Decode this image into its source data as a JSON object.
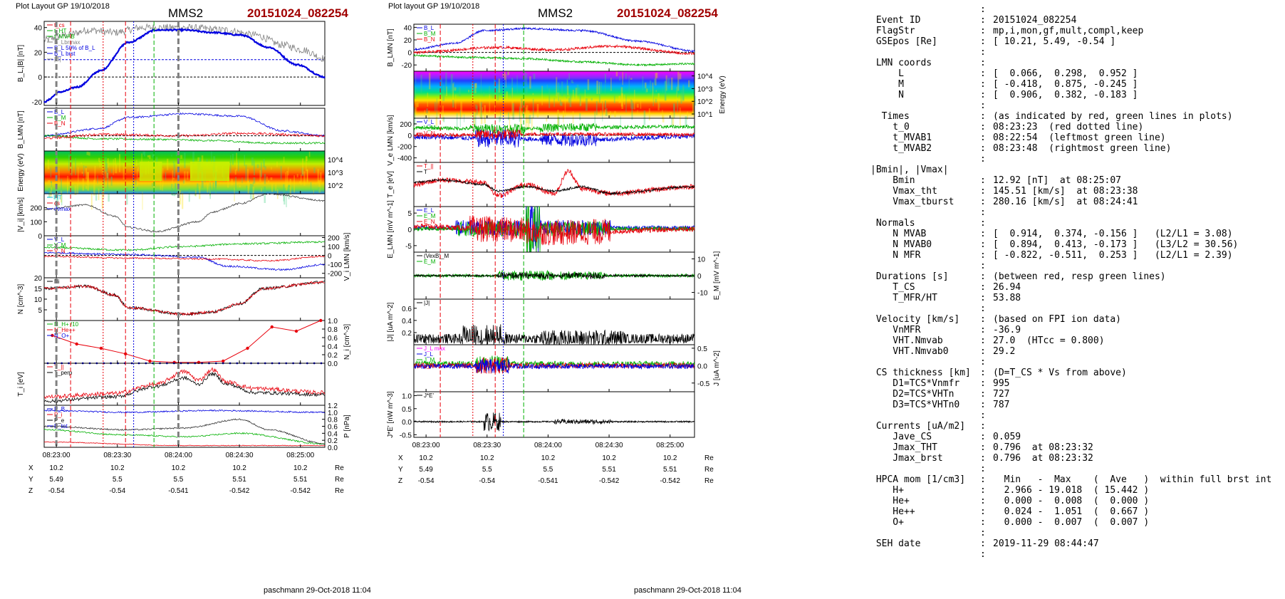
{
  "left_panel": {
    "header": "Plot Layout GP 19/10/2018",
    "title": "MMS2",
    "event": "20151024_082254",
    "footer": "paschmann 29-Oct-2018 11:04",
    "time_ticks": [
      "08:23:00",
      "08:23:30",
      "08:24:00",
      "08:24:30",
      "08:25:00"
    ],
    "position_rows": [
      {
        "label": "X",
        "values": [
          "10.2",
          "10.2",
          "10.2",
          "10.2",
          "10.2"
        ],
        "unit": "Re"
      },
      {
        "label": "Y",
        "values": [
          "5.49",
          "5.5",
          "5.5",
          "5.51",
          "5.51"
        ],
        "unit": "Re"
      },
      {
        "label": "Z",
        "values": [
          "-0.54",
          "-0.54",
          "-0.541",
          "-0.542",
          "-0.542"
        ],
        "unit": "Re"
      }
    ]
  },
  "right_panel": {
    "header": "Plot layout GP 19/10/2018",
    "title": "MMS2",
    "event": "20151024_082254",
    "footer": "paschmann 29-Oct-2018 11:04",
    "time_ticks": [
      "08:23:00",
      "08:23:30",
      "08:24:00",
      "08:24:30",
      "08:25:00"
    ],
    "position_rows": [
      {
        "label": "X",
        "values": [
          "10.2",
          "10.2",
          "10.2",
          "10.2",
          "10.2"
        ],
        "unit": "Re"
      },
      {
        "label": "Y",
        "values": [
          "5.49",
          "5.5",
          "5.5",
          "5.51",
          "5.51"
        ],
        "unit": "Re"
      },
      {
        "label": "Z",
        "values": [
          "-0.54",
          "-0.54",
          "-0.541",
          "-0.542",
          "-0.542"
        ],
        "unit": "Re"
      }
    ]
  },
  "colors": {
    "red": "#e8000b",
    "green": "#00b000",
    "blue": "#0000e0",
    "gray": "#808080",
    "title_red": "#a00000",
    "cyan": "#00c0e0",
    "magenta": "#ff00ff"
  },
  "info_lines": [
    {
      "k": "",
      "c": ":",
      "v": ""
    },
    {
      "k": " Event ID",
      "c": ":",
      "v": "20151024_082254"
    },
    {
      "k": " FlagStr",
      "c": ":",
      "v": "mp,i,mon,gf,mult,compl,keep"
    },
    {
      "k": " GSEpos [Re]",
      "c": ":",
      "v": "[ 10.21, 5.49, -0.54 ]"
    },
    {
      "k": "",
      "c": ":",
      "v": ""
    },
    {
      "k": " LMN coords",
      "c": ":",
      "v": ""
    },
    {
      "k": "     L",
      "c": ":",
      "v": "[  0.066,  0.298,  0.952 ]"
    },
    {
      "k": "     M",
      "c": ":",
      "v": "[ -0.418,  0.875, -0.245 ]"
    },
    {
      "k": "     N",
      "c": ":",
      "v": "[  0.906,  0.382, -0.183 ]"
    },
    {
      "k": "",
      "c": ":",
      "v": ""
    },
    {
      "k": "  Times",
      "c": ":",
      "v": "(as indicated by red, green lines in plots)"
    },
    {
      "k": "    t_0",
      "c": ":",
      "v": "08:23:23  (red dotted line)"
    },
    {
      "k": "    t_MVAB1",
      "c": ":",
      "v": "08:22:54  (leftmost green line)"
    },
    {
      "k": "    t_MVAB2",
      "c": ":",
      "v": "08:23:48  (rightmost green line)"
    },
    {
      "k": "",
      "c": ":",
      "v": ""
    },
    {
      "k": "|Bmin|, |Vmax|",
      "c": "",
      "v": ""
    },
    {
      "k": "    Bmin",
      "c": ":",
      "v": "12.92 [nT]  at 08:25:07"
    },
    {
      "k": "    Vmax_tht",
      "c": ":",
      "v": "145.51 [km/s]  at 08:23:38"
    },
    {
      "k": "    Vmax_tburst",
      "c": ":",
      "v": "280.16 [km/s]  at 08:24:41"
    },
    {
      "k": "",
      "c": ":",
      "v": ""
    },
    {
      "k": " Normals",
      "c": ":",
      "v": ""
    },
    {
      "k": "    N MVAB",
      "c": ":",
      "v": "[  0.914,  0.374, -0.156 ]   (L2/L1 = 3.08)"
    },
    {
      "k": "    N MVAB0",
      "c": ":",
      "v": "[  0.894,  0.413, -0.173 ]   (L3/L2 = 30.56)"
    },
    {
      "k": "    N MFR",
      "c": ":",
      "v": "[ -0.822, -0.511,  0.253 ]   (L2/L1 = 2.39)"
    },
    {
      "k": "",
      "c": ":",
      "v": ""
    },
    {
      "k": " Durations [s]",
      "c": ":",
      "v": "(between red, resp green lines)"
    },
    {
      "k": "    T_CS",
      "c": ":",
      "v": "26.94"
    },
    {
      "k": "    T_MFR/HT",
      "c": ":",
      "v": "53.88"
    },
    {
      "k": "",
      "c": ":",
      "v": ""
    },
    {
      "k": " Velocity [km/s]",
      "c": ":",
      "v": "(based on FPI ion data)"
    },
    {
      "k": "    VnMFR",
      "c": ":",
      "v": "-36.9"
    },
    {
      "k": "    VHT.Nmvab",
      "c": ":",
      "v": "27.0  (HTcc = 0.800)"
    },
    {
      "k": "    VHT.Nmvab0",
      "c": ":",
      "v": "29.2"
    },
    {
      "k": "",
      "c": ":",
      "v": ""
    },
    {
      "k": " CS thickness [km]",
      "c": ":",
      "v": "(D=T_CS * Vs from above)"
    },
    {
      "k": "    D1=TCS*Vnmfr",
      "c": ":",
      "v": "995"
    },
    {
      "k": "    D2=TCS*VHTn",
      "c": ":",
      "v": "727"
    },
    {
      "k": "    D3=TCS*VHTn0",
      "c": ":",
      "v": "787"
    },
    {
      "k": "",
      "c": ":",
      "v": ""
    },
    {
      "k": " Currents [uA/m2]",
      "c": ":",
      "v": ""
    },
    {
      "k": "    Jave_CS",
      "c": ":",
      "v": "0.059"
    },
    {
      "k": "    Jmax_THT",
      "c": ":",
      "v": "0.796  at 08:23:32"
    },
    {
      "k": "    Jmax_brst",
      "c": ":",
      "v": "0.796  at 08:23:32"
    },
    {
      "k": "",
      "c": ":",
      "v": ""
    },
    {
      "k": " HPCA mom [1/cm3]",
      "c": ":",
      "v": "  Min   -  Max    (  Ave   )  within full brst int"
    },
    {
      "k": "    H+",
      "c": ":",
      "v": "  2.966 - 19.018  ( 15.442 )"
    },
    {
      "k": "    He+",
      "c": ":",
      "v": "  0.000 -  0.008  (  0.000 )"
    },
    {
      "k": "    He++",
      "c": ":",
      "v": "  0.024 -  1.051  (  0.667 )"
    },
    {
      "k": "    O+",
      "c": ":",
      "v": "  0.000 -  0.007  (  0.007 )"
    },
    {
      "k": "",
      "c": ":",
      "v": ""
    },
    {
      "k": " SEH date",
      "c": ":",
      "v": "2019-11-29 08:44:47"
    },
    {
      "k": "",
      "c": ":",
      "v": ""
    }
  ],
  "chart_data": [
    {
      "type": "line",
      "panel": "left",
      "title": "MMS2",
      "xlim": [
        "08:22:54",
        "08:25:12"
      ],
      "xticks": [
        "08:23:00",
        "08:23:30",
        "08:24:00",
        "08:24:30",
        "08:25:00"
      ],
      "event_lines": {
        "red_dashed": [
          "08:23:07",
          "08:23:34"
        ],
        "red_dotted": "08:23:23",
        "blue_dotted": "08:23:38",
        "green_dashed": "08:23:48",
        "gray_dashed": [
          "08:23:00",
          "08:24:00"
        ]
      },
      "panels": [
        {
          "name": "bl",
          "ylabel": "B_L,|B| [nT]",
          "ylim": [
            -23,
            45
          ],
          "yticks": [
            "40",
            "20",
            "0",
            "-20"
          ],
          "zero_line": true,
          "ref_line": 14,
          "legend": [
            {
              "text": "t_cs",
              "color": "#e8000b"
            },
            {
              "text": "t_HT",
              "color": "#00b000"
            },
            {
              "text": "t_MVAB",
              "color": "#00b000"
            },
            {
              "text": "B_Lbrmax",
              "color": "#808080"
            },
            {
              "text": "B_L 50% of B_L",
              "color": "#0000e0"
            },
            {
              "text": "B_L brst",
              "color": "#0000e0"
            },
            {
              "text": "|B|",
              "color": "#808080"
            }
          ]
        },
        {
          "name": "blmn",
          "ylabel": "B_LMN [nT]",
          "ylim": [
            -25,
            45
          ],
          "zero_line": true,
          "legend": [
            {
              "text": "B_L",
              "color": "#0000e0"
            },
            {
              "text": "B_M",
              "color": "#00b000"
            },
            {
              "text": "B_N",
              "color": "#e8000b"
            }
          ]
        },
        {
          "name": "ispec",
          "type": "heatmap",
          "ylabel": "Energy (eV)",
          "yticks": [
            "10^4",
            "10^3",
            "10^2"
          ]
        },
        {
          "name": "vi",
          "ylabel": "|V_i| [km/s]",
          "ylim": [
            0,
            300
          ],
          "yticks": [
            "200",
            "100",
            "0"
          ],
          "legend": [
            {
              "text": "HT",
              "color": "#00c0e0"
            },
            {
              "text": "cs",
              "color": "#e8000b"
            },
            {
              "text": "dvmax",
              "color": "#0000e0"
            }
          ]
        },
        {
          "name": "vilmn",
          "ylabel": "V_i LMN [km/s]",
          "ylim": [
            -250,
            220
          ],
          "yticks_right": [
            "200",
            "100",
            "0",
            "-100",
            "-200"
          ],
          "zero_line": true,
          "legend": [
            {
              "text": "V_L",
              "color": "#0000e0"
            },
            {
              "text": "V_M",
              "color": "#00b000"
            },
            {
              "text": "V_N",
              "color": "#e8000b"
            }
          ]
        },
        {
          "name": "n",
          "ylabel": "N [cm^-3]",
          "ylim": [
            0,
            20
          ],
          "yticks": [
            "20",
            "15",
            "10",
            "5"
          ],
          "legend": [
            {
              "text": "Ni",
              "color": "#000000"
            }
          ]
        },
        {
          "name": "hpca",
          "ylabel": "N_i [cm^-3]",
          "ylim": [
            0,
            1.0
          ],
          "yticks_right": [
            "1.0",
            "0.8",
            "0.6",
            "0.4",
            "0.2",
            "0.0"
          ],
          "legend": [
            {
              "text": "N_H+ /10",
              "color": "#00b000"
            },
            {
              "text": "N_He++",
              "color": "#e8000b"
            },
            {
              "text": "N_O+",
              "color": "#0000e0"
            }
          ],
          "x": [
            "08:22:58",
            "08:23:10",
            "08:23:22",
            "08:23:34",
            "08:23:46",
            "08:23:58",
            "08:24:10",
            "08:24:22",
            "08:24:34",
            "08:24:46",
            "08:24:58",
            "08:25:10"
          ],
          "series": [
            {
              "name": "N_He++",
              "values": [
                0.65,
                0.45,
                0.35,
                0.22,
                0.05,
                0.02,
                0.02,
                0.05,
                0.35,
                0.85,
                0.75,
                1.0
              ]
            }
          ]
        },
        {
          "name": "ti",
          "ylabel": "T_i [eV]",
          "legend": [
            {
              "text": "T_||",
              "color": "#e8000b"
            },
            {
              "text": "T_perp",
              "color": "#000000"
            }
          ]
        },
        {
          "name": "p",
          "ylabel": "P [nPa]",
          "ylim": [
            0,
            1.2
          ],
          "yticks_right": [
            "1.2",
            "1.0",
            "0.8",
            "0.6",
            "0.4",
            "0.2",
            "0.0"
          ],
          "legend": [
            {
              "text": "P_B",
              "color": "#0000e0"
            },
            {
              "text": "P_i",
              "color": "#e8000b"
            },
            {
              "text": "P_e",
              "color": "#000000"
            },
            {
              "text": "P_tot",
              "color": "#0000e0"
            }
          ]
        }
      ]
    },
    {
      "type": "line",
      "panel": "right",
      "title": "MMS2",
      "xlim": [
        "08:22:54",
        "08:25:12"
      ],
      "xticks": [
        "08:23:00",
        "08:23:30",
        "08:24:00",
        "08:24:30",
        "08:25:00"
      ],
      "panels": [
        {
          "name": "blmn",
          "ylabel": "B_LMN [nT]",
          "ylim": [
            -30,
            45
          ],
          "yticks": [
            "40",
            "20",
            "0",
            "-20"
          ],
          "zero_line": true,
          "legend": [
            {
              "text": "B_L",
              "color": "#0000e0"
            },
            {
              "text": "B_M",
              "color": "#00b000"
            },
            {
              "text": "B_N",
              "color": "#e8000b"
            }
          ]
        },
        {
          "name": "espec",
          "type": "heatmap",
          "ylabel": "Energy (eV)",
          "yticks_right": [
            "10^4",
            "10^3",
            "10^2",
            "10^1"
          ]
        },
        {
          "name": "ve",
          "ylabel": "V_e LMN [km/s]",
          "ylim": [
            -480,
            300
          ],
          "yticks": [
            "200",
            "0",
            "-200",
            "-400"
          ],
          "zero_line": true,
          "legend": [
            {
              "text": "V_L",
              "color": "#0000e0"
            },
            {
              "text": "V_M",
              "color": "#00b000"
            },
            {
              "text": "V_N",
              "color": "#e8000b"
            }
          ]
        },
        {
          "name": "te",
          "ylabel": "T_e [eV]",
          "legend": [
            {
              "text": "T_||",
              "color": "#e8000b"
            },
            {
              "text": "T",
              "color": "#000000"
            }
          ]
        },
        {
          "name": "e",
          "ylabel": "E_LMN [mV m^-1]",
          "ylim": [
            -7,
            7
          ],
          "yticks": [
            "5",
            "0",
            "-5"
          ],
          "zero_line": true,
          "legend": [
            {
              "text": "E_L",
              "color": "#0000e0"
            },
            {
              "text": "E_M",
              "color": "#00b000"
            },
            {
              "text": "E_N",
              "color": "#e8000b"
            }
          ]
        },
        {
          "name": "em",
          "ylabel": "E_M [mV m^-1]",
          "ylim": [
            -14,
            14
          ],
          "yticks_right": [
            "10",
            "0",
            "-10"
          ],
          "zero_line": true,
          "legend": [
            {
              "text": "(VexB)_M",
              "color": "#000000"
            },
            {
              "text": "E_M",
              "color": "#00b000"
            }
          ]
        },
        {
          "name": "j",
          "ylabel": "|J| [uA m^-2]",
          "ylim": [
            0,
            0.75
          ],
          "yticks": [
            "0.6",
            "0.4",
            "0.2"
          ],
          "legend": [
            {
              "text": "|J|",
              "color": "#000000"
            }
          ]
        },
        {
          "name": "jlmn",
          "ylabel": "J [uA m^-2]",
          "ylim": [
            -0.75,
            0.6
          ],
          "yticks_right": [
            "0.5",
            "0.0",
            "-0.5"
          ],
          "legend": [
            {
              "text": "J_L max",
              "color": "#ff00ff"
            },
            {
              "text": "J_L",
              "color": "#0000e0"
            },
            {
              "text": "J_M",
              "color": "#00b000"
            },
            {
              "text": "J_N",
              "color": "#e8000b"
            }
          ]
        },
        {
          "name": "je",
          "ylabel": "J*E' [nW m^-3]",
          "ylim": [
            -0.6,
            1.15
          ],
          "yticks": [
            "1.0",
            "0.5",
            "0.0",
            "-0.5"
          ],
          "zero_line": true,
          "legend": [
            {
              "text": "J*E'",
              "color": "#000000"
            }
          ]
        }
      ]
    }
  ]
}
